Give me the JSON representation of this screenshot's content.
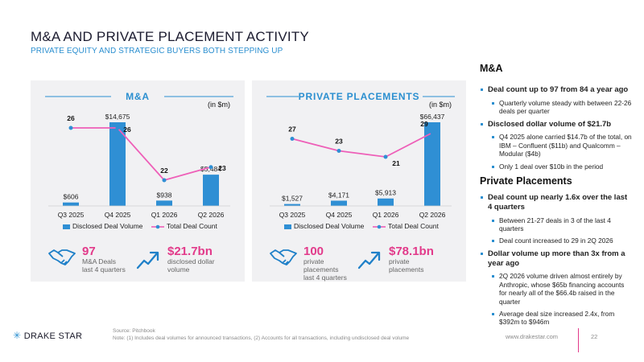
{
  "header": {
    "title": "M&A AND PRIVATE PLACEMENT ACTIVITY",
    "subtitle": "PRIVATE EQUITY AND STRATEGIC BUYERS BOTH STEPPING UP"
  },
  "colors": {
    "accent_blue": "#2b8fd0",
    "accent_pink": "#e23a8a",
    "bar": "#2f8fd4",
    "line": "#ee5fb8",
    "point": "#2f8fd4"
  },
  "chart_data": [
    {
      "type": "bar",
      "title": "M&A",
      "unit_label": "(in $m)",
      "categories": [
        "Q3 2025",
        "Q4 2025",
        "Q1 2026",
        "Q2 2026"
      ],
      "series": [
        {
          "name": "Disclosed Deal Volume",
          "type": "bar",
          "values": [
            606,
            14675,
            938,
            5484
          ],
          "labels": [
            "$606",
            "$14,675",
            "$938",
            "$5,484"
          ]
        },
        {
          "name": "Total Deal Count",
          "type": "line",
          "values": [
            26,
            26,
            22,
            23
          ],
          "labels": [
            "26",
            "26",
            "22",
            "23"
          ]
        }
      ],
      "legend": "bottom"
    },
    {
      "type": "bar",
      "title": "PRIVATE PLACEMENTS",
      "unit_label": "(in $m)",
      "categories": [
        "Q3 2025",
        "Q4 2025",
        "Q1 2026",
        "Q2 2026"
      ],
      "series": [
        {
          "name": "Disclosed Deal Volume",
          "type": "bar",
          "values": [
            1527,
            4171,
            5913,
            66437
          ],
          "labels": [
            "$1,527",
            "$4,171",
            "$5,913",
            "$66,437"
          ]
        },
        {
          "name": "Total Deal Count",
          "type": "line",
          "values": [
            27,
            23,
            21,
            29
          ],
          "labels": [
            "27",
            "23",
            "21",
            "29"
          ]
        }
      ],
      "legend": "bottom"
    }
  ],
  "stats": {
    "ma": {
      "count_value": "97",
      "count_line1": "M&A Deals",
      "count_line2": "last 4 quarters",
      "volume_value": "$21.7bn",
      "volume_line1": "disclosed dollar",
      "volume_line2": "volume",
      "icon1": "handshake-icon",
      "icon2": "trend-up-icon"
    },
    "pp": {
      "count_value": "100",
      "count_line1": "private",
      "count_line2": "placements",
      "count_line3": "last 4 quarters",
      "volume_value": "$78.1bn",
      "volume_line1": "private",
      "volume_line2": "placements",
      "icon1": "handshake-icon",
      "icon2": "trend-up-icon"
    }
  },
  "right_panel": {
    "ma_heading": "M&A",
    "ma_bullets": [
      {
        "text": "Deal count up to 97 from 84 a year ago",
        "subs": [
          "Quarterly volume steady with between 22-26 deals per quarter"
        ]
      },
      {
        "text": "Disclosed dollar volume of $21.7b",
        "subs": [
          "Q4 2025 alone carried $14.7b of the total, on IBM – Confluent ($11b) and Qualcomm – Modular ($4b)",
          "Only 1 deal over $10b in the period"
        ]
      }
    ],
    "pp_heading": "Private Placements",
    "pp_bullets": [
      {
        "text": "Deal count up nearly 1.6x over the last 4 quarters",
        "subs": [
          "Between 21-27 deals in 3 of the last 4 quarters",
          "Deal count increased to 29 in 2Q 2026"
        ]
      },
      {
        "text": "Dollar volume up more than 3x from a year ago",
        "subs": [
          "2Q 2026 volume driven almost entirely by Anthropic, whose $65b financing accounts for nearly all of the $66.4b raised in the quarter",
          "Average deal size increased 2.4x, from $392m to $946m"
        ]
      }
    ]
  },
  "footer": {
    "source": "Source: Pitchbook",
    "note": "Note: (1) Includes deal volumes for announced transactions, (2) Accounts for all transactions, including undisclosed deal volume",
    "brand": "DRAKE STAR",
    "website": "www.drakestar.com",
    "page": "22"
  }
}
